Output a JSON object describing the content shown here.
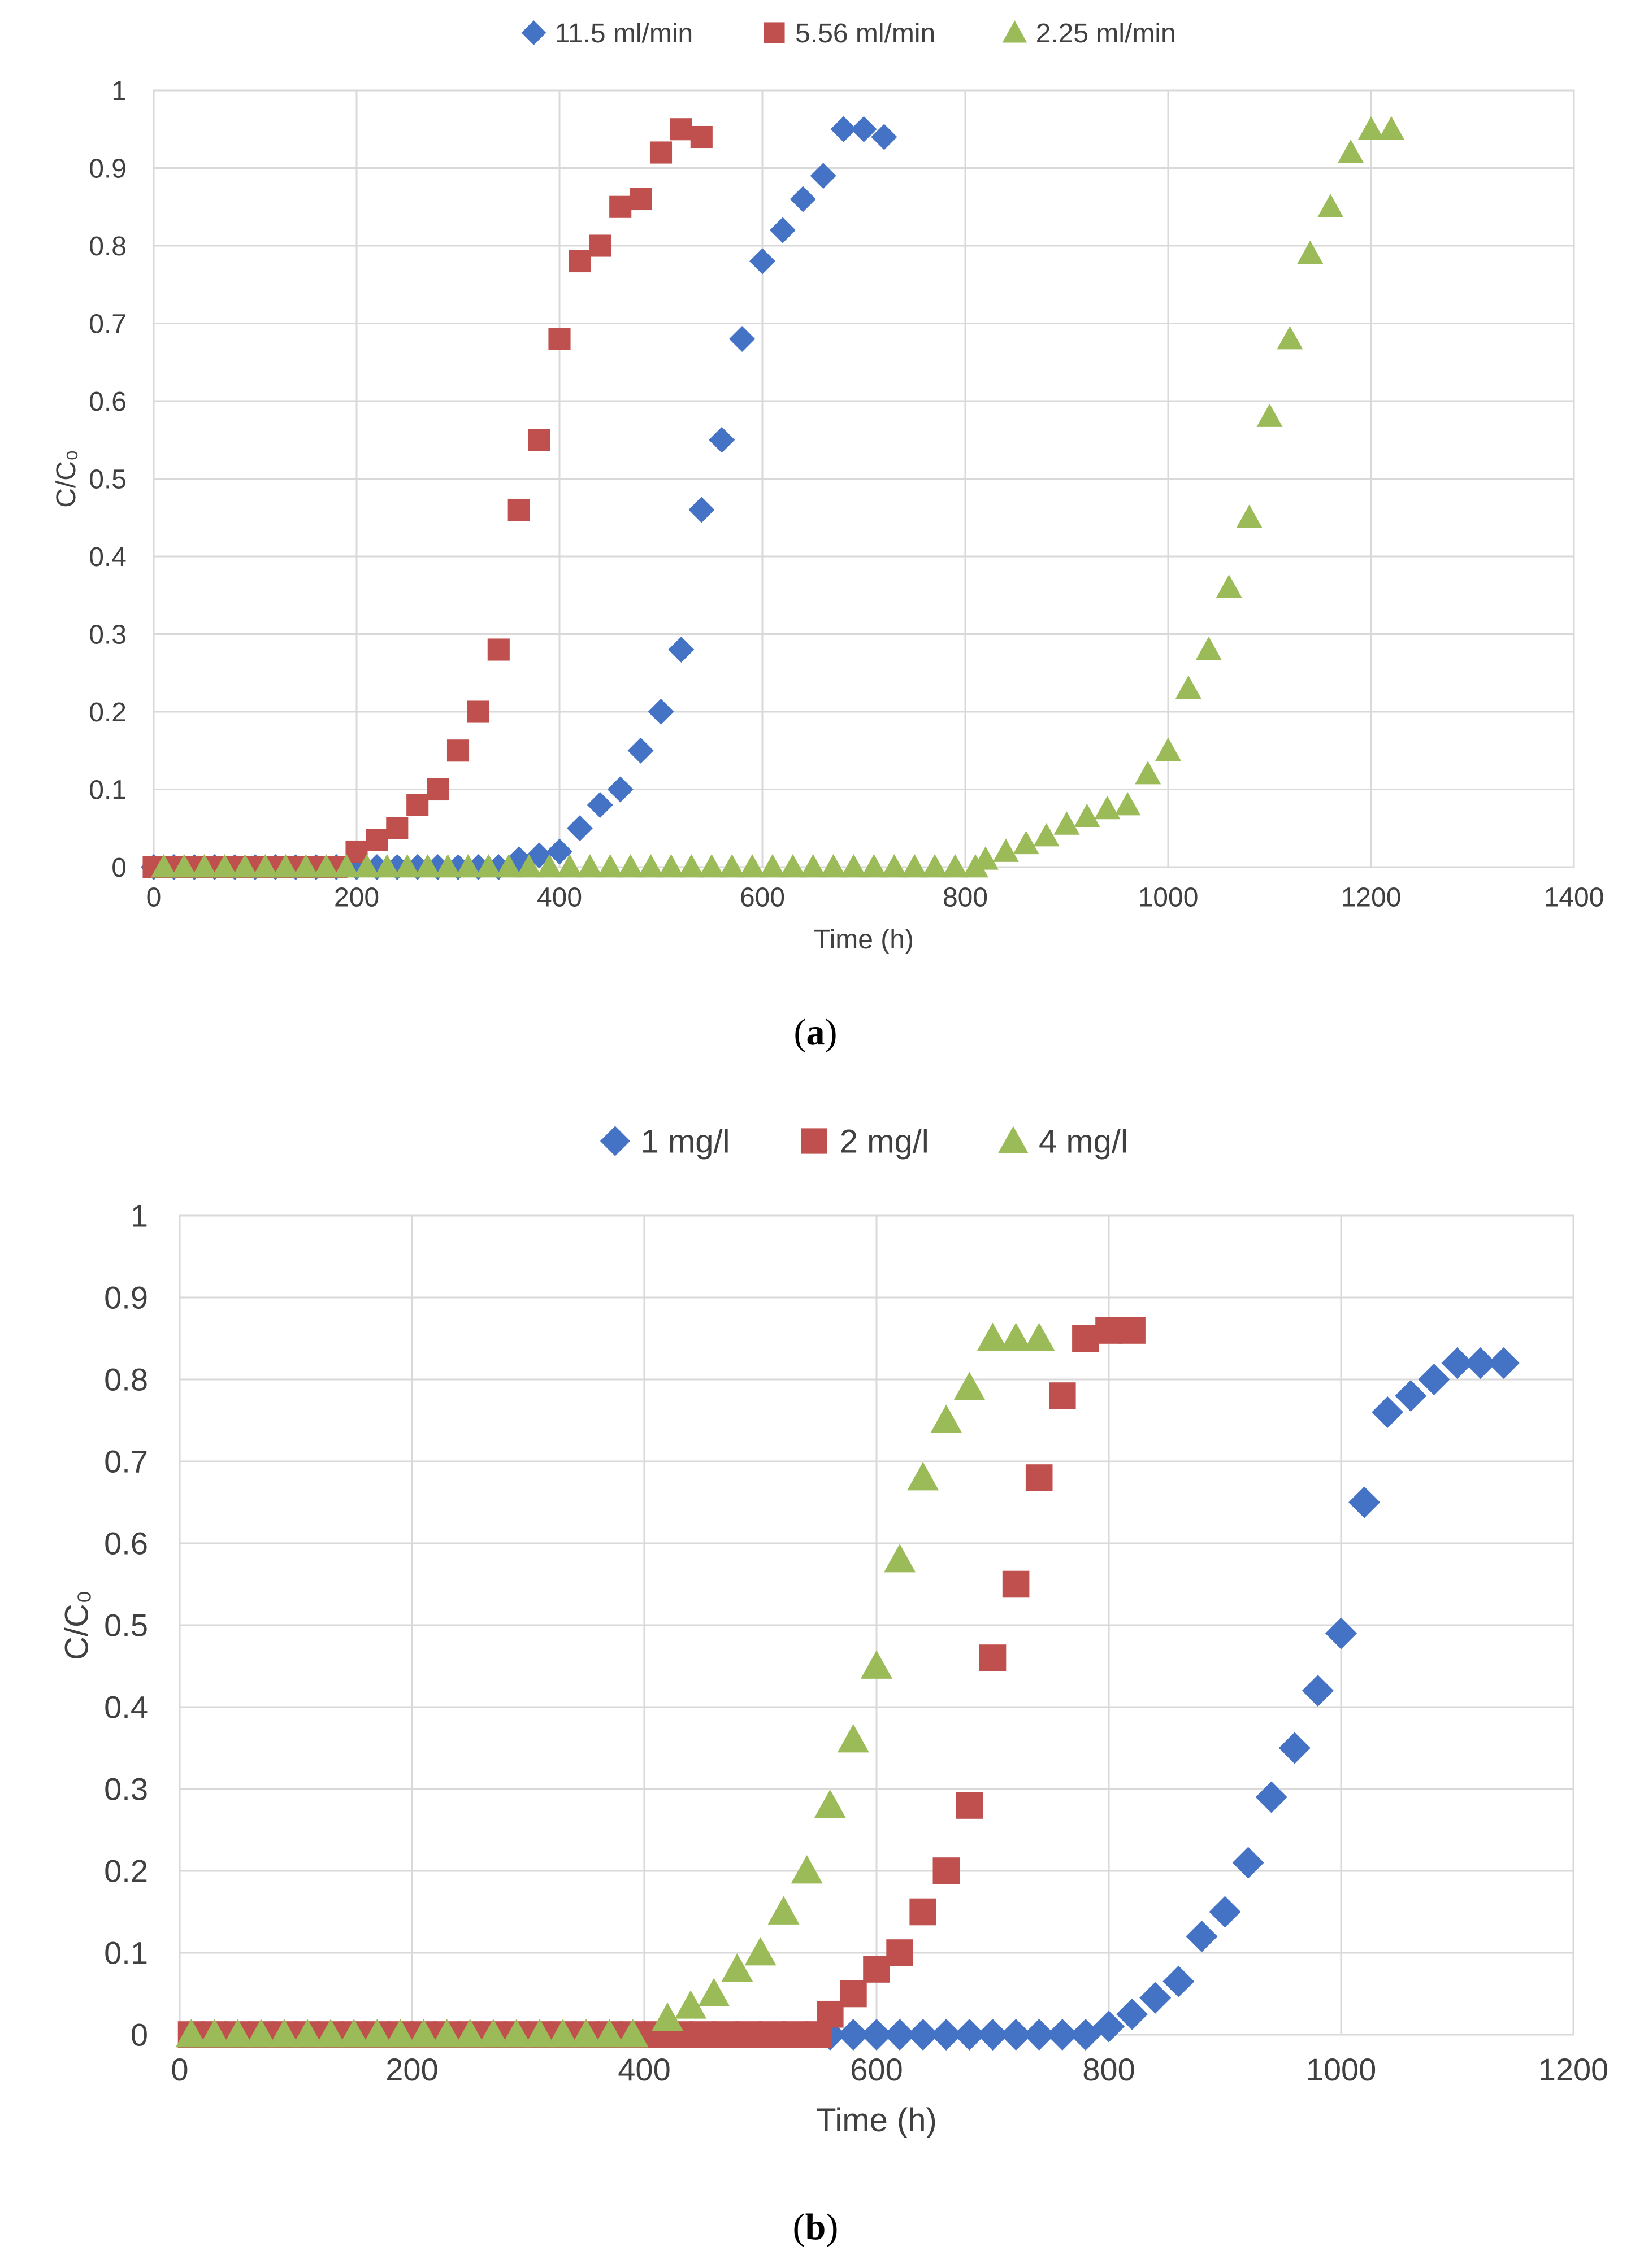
{
  "figures": [
    {
      "label": "(a)",
      "bold": "a"
    },
    {
      "label": "(b)",
      "bold": "b"
    }
  ],
  "chart_data": [
    {
      "type": "scatter",
      "title": "",
      "xlabel": "Time (h)",
      "ylabel": "C/C₀",
      "xlim": [
        0,
        1400
      ],
      "ylim": [
        0,
        1
      ],
      "xticks": [
        0,
        200,
        400,
        600,
        800,
        1000,
        1200,
        1400
      ],
      "yticks": [
        0,
        0.1,
        0.2,
        0.3,
        0.4,
        0.5,
        0.6,
        0.7,
        0.8,
        0.9,
        1
      ],
      "grid": true,
      "legend": "top-center",
      "series": [
        {
          "name": "11.5 ml/min",
          "marker": "diamond",
          "color": "#4472C4",
          "x": [
            0,
            20,
            40,
            60,
            80,
            100,
            120,
            140,
            160,
            180,
            200,
            220,
            240,
            260,
            280,
            300,
            320,
            340,
            360,
            380,
            400,
            420,
            440,
            460,
            480,
            500,
            520,
            540,
            560,
            580,
            600,
            620,
            640,
            660,
            680,
            700,
            720
          ],
          "y": [
            0,
            0,
            0,
            0,
            0,
            0,
            0,
            0,
            0,
            0,
            0,
            0,
            0,
            0,
            0,
            0,
            0,
            0,
            0.01,
            0.015,
            0.02,
            0.05,
            0.08,
            0.1,
            0.15,
            0.2,
            0.28,
            0.46,
            0.55,
            0.68,
            0.78,
            0.82,
            0.86,
            0.89,
            0.95,
            0.95,
            0.94
          ]
        },
        {
          "name": "5.56 ml/min",
          "marker": "square",
          "color": "#C0504D",
          "x": [
            0,
            20,
            40,
            60,
            80,
            100,
            120,
            140,
            160,
            180,
            200,
            220,
            240,
            260,
            280,
            300,
            320,
            340,
            360,
            380,
            400,
            420,
            440,
            460,
            480,
            500,
            520,
            540
          ],
          "y": [
            0,
            0,
            0,
            0,
            0,
            0,
            0,
            0,
            0,
            0,
            0.02,
            0.035,
            0.05,
            0.08,
            0.1,
            0.15,
            0.2,
            0.28,
            0.46,
            0.55,
            0.68,
            0.78,
            0.8,
            0.85,
            0.86,
            0.92,
            0.95,
            0.94
          ]
        },
        {
          "name": "2.25 ml/min",
          "marker": "triangle",
          "color": "#9BBB59",
          "x": [
            10,
            30,
            50,
            70,
            90,
            110,
            130,
            150,
            170,
            190,
            210,
            230,
            250,
            270,
            290,
            310,
            330,
            350,
            370,
            390,
            410,
            430,
            450,
            470,
            490,
            510,
            530,
            550,
            570,
            590,
            610,
            630,
            650,
            670,
            690,
            710,
            730,
            750,
            770,
            790,
            810,
            820,
            840,
            860,
            880,
            900,
            920,
            940,
            960,
            980,
            1000,
            1020,
            1040,
            1060,
            1080,
            1100,
            1120,
            1140,
            1160,
            1180,
            1200,
            1220
          ],
          "y": [
            0,
            0,
            0,
            0,
            0,
            0,
            0,
            0,
            0,
            0,
            0,
            0,
            0,
            0,
            0,
            0,
            0,
            0,
            0,
            0,
            0,
            0,
            0,
            0,
            0,
            0,
            0,
            0,
            0,
            0,
            0,
            0,
            0,
            0,
            0,
            0,
            0,
            0,
            0,
            0,
            0,
            0.01,
            0.02,
            0.03,
            0.04,
            0.055,
            0.065,
            0.075,
            0.08,
            0.12,
            0.15,
            0.23,
            0.28,
            0.36,
            0.45,
            0.58,
            0.68,
            0.79,
            0.85,
            0.92,
            0.95,
            0.95
          ]
        }
      ]
    },
    {
      "type": "scatter",
      "title": "",
      "xlabel": "Time (h)",
      "ylabel": "C/C₀",
      "xlim": [
        0,
        1200
      ],
      "ylim": [
        0,
        1
      ],
      "xticks": [
        0,
        200,
        400,
        600,
        800,
        1000,
        1200
      ],
      "yticks": [
        0,
        0.1,
        0.2,
        0.3,
        0.4,
        0.5,
        0.6,
        0.7,
        0.8,
        0.9,
        1
      ],
      "grid": true,
      "legend": "top-center",
      "series": [
        {
          "name": "1 mg/l",
          "marker": "diamond",
          "color": "#4472C4",
          "x": [
            560,
            580,
            600,
            620,
            640,
            660,
            680,
            700,
            720,
            740,
            760,
            780,
            800,
            820,
            840,
            860,
            880,
            900,
            920,
            940,
            960,
            980,
            1000,
            1020,
            1040,
            1060,
            1080,
            1100,
            1120,
            1140
          ],
          "y": [
            0,
            0,
            0,
            0,
            0,
            0,
            0,
            0,
            0,
            0,
            0,
            0,
            0.01,
            0.025,
            0.045,
            0.065,
            0.12,
            0.15,
            0.21,
            0.29,
            0.35,
            0.42,
            0.49,
            0.65,
            0.76,
            0.78,
            0.8,
            0.82,
            0.82,
            0.82
          ]
        },
        {
          "name": "2 mg/l",
          "marker": "square",
          "color": "#C0504D",
          "x": [
            10,
            30,
            50,
            70,
            90,
            110,
            130,
            150,
            170,
            190,
            210,
            230,
            250,
            270,
            290,
            310,
            330,
            350,
            370,
            390,
            410,
            430,
            450,
            470,
            490,
            510,
            530,
            550,
            560,
            580,
            600,
            620,
            640,
            660,
            680,
            700,
            720,
            740,
            760,
            780,
            800,
            820
          ],
          "y": [
            0,
            0,
            0,
            0,
            0,
            0,
            0,
            0,
            0,
            0,
            0,
            0,
            0,
            0,
            0,
            0,
            0,
            0,
            0,
            0,
            0,
            0,
            0,
            0,
            0,
            0,
            0,
            0,
            0.025,
            0.05,
            0.08,
            0.1,
            0.15,
            0.2,
            0.28,
            0.46,
            0.55,
            0.68,
            0.78,
            0.85,
            0.86,
            0.86
          ]
        },
        {
          "name": "4 mg/l",
          "marker": "triangle",
          "color": "#9BBB59",
          "x": [
            10,
            30,
            50,
            70,
            90,
            110,
            130,
            150,
            170,
            190,
            210,
            230,
            250,
            270,
            290,
            310,
            330,
            350,
            370,
            390,
            420,
            440,
            460,
            480,
            500,
            520,
            540,
            560,
            580,
            600,
            620,
            640,
            660,
            680,
            700,
            720,
            740
          ],
          "y": [
            0,
            0,
            0,
            0,
            0,
            0,
            0,
            0,
            0,
            0,
            0,
            0,
            0,
            0,
            0,
            0,
            0,
            0,
            0,
            0,
            0.02,
            0.035,
            0.05,
            0.08,
            0.1,
            0.15,
            0.2,
            0.28,
            0.36,
            0.45,
            0.58,
            0.68,
            0.75,
            0.79,
            0.85,
            0.85,
            0.85
          ]
        }
      ]
    }
  ]
}
